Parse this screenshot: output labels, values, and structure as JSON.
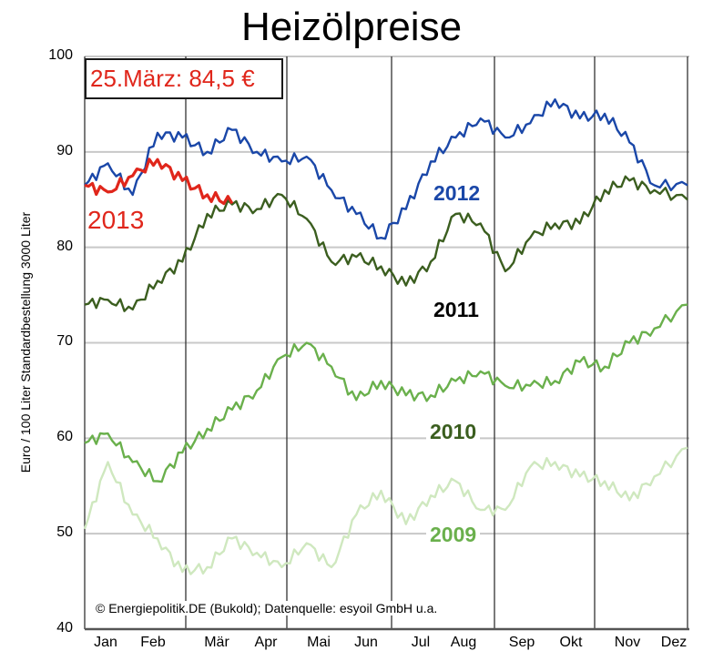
{
  "chart_data": {
    "type": "line",
    "title": "Heizölpreise",
    "xlabel": "",
    "ylabel": "Euro / 100 Liter Standardbestellung 3000 Liter",
    "ylim": [
      40,
      100
    ],
    "yticks": [
      40,
      50,
      60,
      70,
      80,
      90,
      100
    ],
    "grid": "horizontal gridlines every 10; vertical separators between quarters/periods",
    "categories": [
      "Jan",
      "Feb",
      "Mär",
      "Apr",
      "Mai",
      "Jun",
      "Jul",
      "Aug",
      "Sep",
      "Okt",
      "Nov",
      "Dez"
    ],
    "x_day_of_year": [
      1,
      15,
      30,
      45,
      60,
      75,
      90,
      105,
      120,
      135,
      150,
      165,
      180,
      195,
      210,
      225,
      240,
      255,
      270,
      285,
      300,
      315,
      330,
      345,
      365
    ],
    "series": [
      {
        "name": "2013",
        "color": "#e0261b",
        "label_color": "#e0261b",
        "values": [
          86.5,
          85.8,
          87.5,
          89.2,
          87.0,
          85.5,
          84.6,
          null,
          null,
          null,
          null,
          null,
          null,
          null,
          null,
          null,
          null,
          null,
          null,
          null,
          null,
          null,
          null,
          null,
          null
        ]
      },
      {
        "name": "2012",
        "color": "#1a47a8",
        "label_color": "#1a47a8",
        "values": [
          86.5,
          88.8,
          85.5,
          92.0,
          91.5,
          90.0,
          92.3,
          90.0,
          89.0,
          89.5,
          86.0,
          83.5,
          81.0,
          84.0,
          89.0,
          91.5,
          93.5,
          91.5,
          93.0,
          95.5,
          93.5,
          94.0,
          91.0,
          86.5,
          86.5
        ]
      },
      {
        "name": "2011",
        "color": "#3b5e1f",
        "label_color": "#000000",
        "values": [
          74.0,
          74.5,
          73.5,
          76.5,
          78.5,
          83.5,
          84.5,
          84.0,
          85.5,
          83.0,
          78.5,
          79.0,
          78.0,
          76.0,
          78.5,
          83.5,
          82.5,
          77.5,
          81.0,
          82.5,
          82.5,
          86.0,
          87.0,
          86.0,
          85.0
        ]
      },
      {
        "name": "2010",
        "color": "#6ab04c",
        "label_color": "#3b5e1f",
        "values": [
          59.5,
          60.5,
          57.5,
          55.5,
          58.5,
          61.0,
          63.0,
          65.0,
          68.5,
          70.0,
          67.5,
          64.0,
          66.0,
          64.5,
          64.5,
          66.0,
          67.0,
          65.5,
          65.5,
          66.0,
          68.0,
          67.5,
          70.0,
          71.5,
          74.0
        ]
      },
      {
        "name": "2009",
        "color": "#cfe8bf",
        "label_color": "#6ab04c",
        "values": [
          50.5,
          57.5,
          52.0,
          49.5,
          46.0,
          46.5,
          49.5,
          48.0,
          46.5,
          49.0,
          46.5,
          52.0,
          54.5,
          51.0,
          54.0,
          55.5,
          52.5,
          52.5,
          57.0,
          57.5,
          56.0,
          55.5,
          53.5,
          56.0,
          59.0
        ]
      }
    ],
    "annotations": {
      "highlight_box": "25.März: 84,5 €",
      "source": "© Energiepolitik.DE (Bukold); Datenquelle: esyoil GmbH u.a."
    },
    "legend_position": "inline labels next to lines"
  },
  "ui": {
    "title": "Heizölpreise",
    "ylabel": "Euro / 100 Liter Standardbestellung 3000 Liter",
    "yticks": [
      "100",
      "90",
      "80",
      "70",
      "60",
      "50",
      "40"
    ],
    "xticks": [
      "Jan",
      "Feb",
      "Mär",
      "Apr",
      "Mai",
      "Jun",
      "Jul",
      "Aug",
      "Sep",
      "Okt",
      "Nov",
      "Dez"
    ],
    "annotation": "25.März: 84,5 €",
    "source": "© Energiepolitik.DE (Bukold); Datenquelle: esyoil GmbH u.a.",
    "labels": {
      "y2013": "2013",
      "y2012": "2012",
      "y2011": "2011",
      "y2010": "2010",
      "y2009": "2009"
    }
  },
  "colors": {
    "grid": "#c8c8c8",
    "separator": "#333333",
    "axis": "#555555",
    "annotation_text": "#e0261b"
  }
}
